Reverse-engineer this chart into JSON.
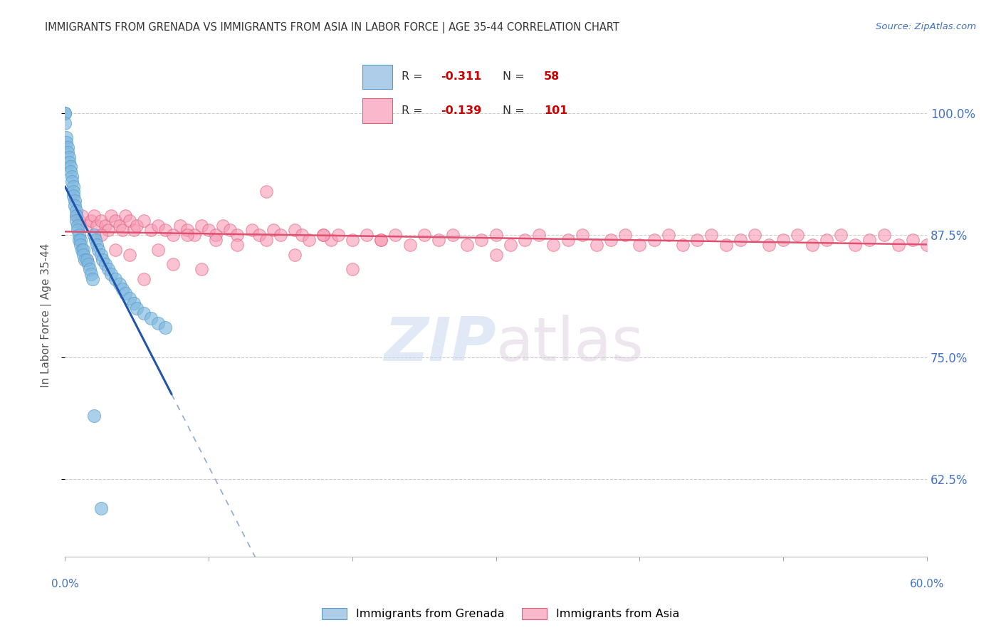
{
  "title": "IMMIGRANTS FROM GRENADA VS IMMIGRANTS FROM ASIA IN LABOR FORCE | AGE 35-44 CORRELATION CHART",
  "source": "Source: ZipAtlas.com",
  "ylabel": "In Labor Force | Age 35-44",
  "ytick_labels": [
    "62.5%",
    "75.0%",
    "87.5%",
    "100.0%"
  ],
  "ytick_values": [
    0.625,
    0.75,
    0.875,
    1.0
  ],
  "xlim": [
    0.0,
    0.6
  ],
  "ylim": [
    0.545,
    1.04
  ],
  "grenada_color": "#7fb8e0",
  "grenada_edge_color": "#5a9ec8",
  "asia_color": "#f79ab5",
  "asia_edge_color": "#e0607a",
  "grenada_R": -0.311,
  "grenada_N": 58,
  "asia_R": -0.139,
  "asia_N": 101,
  "background_color": "#ffffff",
  "grid_color": "#c8c8c8",
  "title_color": "#333333",
  "axis_label_color": "#4472c4",
  "reg_line_grenada_color": "#2255aa",
  "reg_line_asia_color": "#e05070",
  "legend_box_color": "#aecde8",
  "legend_box_color2": "#f9b8cc",
  "legend_R_color": "#cc0000",
  "legend_N_color": "#cc0000",
  "grenada_scatter_x": [
    0.0,
    0.0,
    0.0,
    0.001,
    0.001,
    0.002,
    0.002,
    0.003,
    0.003,
    0.004,
    0.004,
    0.005,
    0.005,
    0.006,
    0.006,
    0.006,
    0.007,
    0.007,
    0.008,
    0.008,
    0.008,
    0.009,
    0.009,
    0.01,
    0.01,
    0.011,
    0.011,
    0.012,
    0.013,
    0.013,
    0.014,
    0.015,
    0.016,
    0.017,
    0.018,
    0.019,
    0.02,
    0.021,
    0.022,
    0.023,
    0.025,
    0.026,
    0.028,
    0.03,
    0.032,
    0.035,
    0.038,
    0.04,
    0.042,
    0.045,
    0.048,
    0.05,
    0.055,
    0.06,
    0.065,
    0.07,
    0.02,
    0.025
  ],
  "grenada_scatter_y": [
    1.0,
    1.0,
    0.99,
    0.975,
    0.97,
    0.965,
    0.96,
    0.955,
    0.95,
    0.945,
    0.94,
    0.935,
    0.93,
    0.925,
    0.92,
    0.915,
    0.91,
    0.905,
    0.9,
    0.895,
    0.89,
    0.885,
    0.88,
    0.875,
    0.87,
    0.87,
    0.865,
    0.86,
    0.86,
    0.855,
    0.85,
    0.85,
    0.845,
    0.84,
    0.835,
    0.83,
    0.875,
    0.87,
    0.865,
    0.86,
    0.855,
    0.85,
    0.845,
    0.84,
    0.835,
    0.83,
    0.825,
    0.82,
    0.815,
    0.81,
    0.805,
    0.8,
    0.795,
    0.79,
    0.785,
    0.78,
    0.69,
    0.595
  ],
  "asia_scatter_x": [
    0.008,
    0.01,
    0.012,
    0.015,
    0.018,
    0.02,
    0.022,
    0.025,
    0.028,
    0.03,
    0.032,
    0.035,
    0.038,
    0.04,
    0.042,
    0.045,
    0.048,
    0.05,
    0.055,
    0.06,
    0.065,
    0.07,
    0.075,
    0.08,
    0.085,
    0.09,
    0.095,
    0.1,
    0.105,
    0.11,
    0.115,
    0.12,
    0.13,
    0.135,
    0.14,
    0.145,
    0.15,
    0.16,
    0.165,
    0.17,
    0.18,
    0.185,
    0.19,
    0.2,
    0.21,
    0.22,
    0.23,
    0.24,
    0.25,
    0.26,
    0.27,
    0.28,
    0.29,
    0.3,
    0.31,
    0.32,
    0.33,
    0.34,
    0.35,
    0.36,
    0.37,
    0.38,
    0.39,
    0.4,
    0.41,
    0.42,
    0.43,
    0.44,
    0.45,
    0.46,
    0.47,
    0.48,
    0.49,
    0.5,
    0.51,
    0.52,
    0.53,
    0.54,
    0.55,
    0.56,
    0.57,
    0.58,
    0.59,
    0.6,
    0.015,
    0.025,
    0.035,
    0.045,
    0.055,
    0.065,
    0.075,
    0.085,
    0.095,
    0.105,
    0.12,
    0.14,
    0.16,
    0.18,
    0.2,
    0.22,
    0.3
  ],
  "asia_scatter_y": [
    0.895,
    0.89,
    0.895,
    0.885,
    0.89,
    0.895,
    0.885,
    0.89,
    0.885,
    0.88,
    0.895,
    0.89,
    0.885,
    0.88,
    0.895,
    0.89,
    0.88,
    0.885,
    0.89,
    0.88,
    0.885,
    0.88,
    0.875,
    0.885,
    0.88,
    0.875,
    0.885,
    0.88,
    0.875,
    0.885,
    0.88,
    0.875,
    0.88,
    0.875,
    0.87,
    0.88,
    0.875,
    0.88,
    0.875,
    0.87,
    0.875,
    0.87,
    0.875,
    0.87,
    0.875,
    0.87,
    0.875,
    0.865,
    0.875,
    0.87,
    0.875,
    0.865,
    0.87,
    0.875,
    0.865,
    0.87,
    0.875,
    0.865,
    0.87,
    0.875,
    0.865,
    0.87,
    0.875,
    0.865,
    0.87,
    0.875,
    0.865,
    0.87,
    0.875,
    0.865,
    0.87,
    0.875,
    0.865,
    0.87,
    0.875,
    0.865,
    0.87,
    0.875,
    0.865,
    0.87,
    0.875,
    0.865,
    0.87,
    0.865,
    0.85,
    0.875,
    0.86,
    0.855,
    0.83,
    0.86,
    0.845,
    0.875,
    0.84,
    0.87,
    0.865,
    0.92,
    0.855,
    0.875,
    0.84,
    0.87,
    0.855
  ]
}
